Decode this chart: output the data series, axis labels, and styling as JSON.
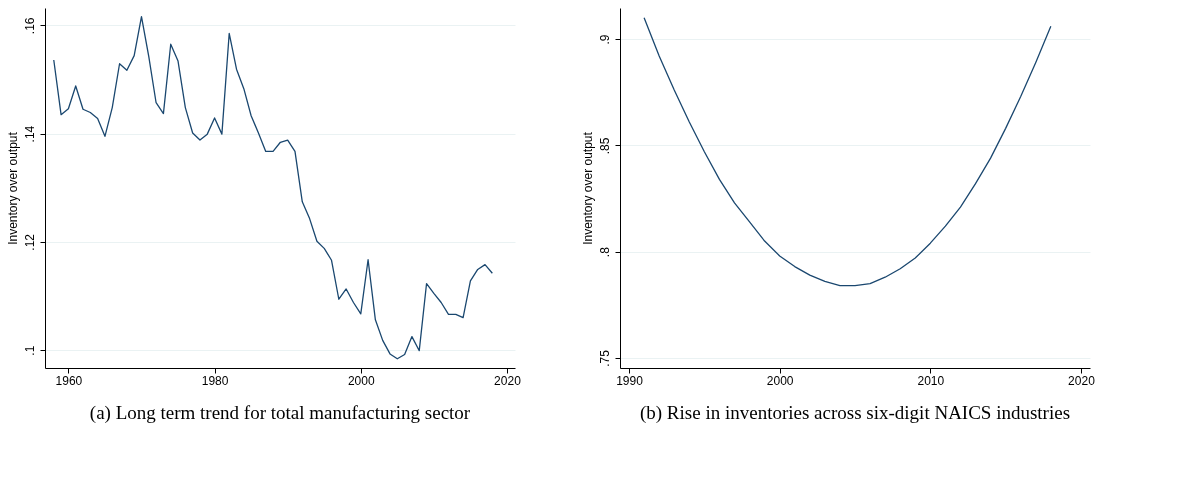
{
  "chart_data": [
    {
      "type": "line",
      "title": "(a) Long term trend for total manufacturing sector",
      "ylabel": "Inventory over output",
      "x": [
        1958,
        1959,
        1960,
        1961,
        1962,
        1963,
        1964,
        1965,
        1966,
        1967,
        1968,
        1969,
        1970,
        1971,
        1972,
        1973,
        1974,
        1975,
        1976,
        1977,
        1978,
        1979,
        1980,
        1981,
        1982,
        1983,
        1984,
        1985,
        1986,
        1987,
        1988,
        1989,
        1990,
        1991,
        1992,
        1993,
        1994,
        1995,
        1996,
        1997,
        1998,
        1999,
        2000,
        2001,
        2002,
        2003,
        2004,
        2005,
        2006,
        2007,
        2008,
        2009,
        2010,
        2011,
        2012,
        2013,
        2014,
        2015,
        2016,
        2017,
        2018
      ],
      "series": [
        {
          "color": "#1a476f",
          "values": [
            0.1536,
            0.1435,
            0.1446,
            0.1488,
            0.1445,
            0.1439,
            0.1428,
            0.1395,
            0.1448,
            0.1529,
            0.1517,
            0.1544,
            0.1616,
            0.1542,
            0.1457,
            0.1437,
            0.1565,
            0.1534,
            0.1448,
            0.1401,
            0.1388,
            0.1399,
            0.1429,
            0.1399,
            0.1585,
            0.1519,
            0.1483,
            0.1433,
            0.1401,
            0.1367,
            0.1367,
            0.1384,
            0.1388,
            0.1367,
            0.1274,
            0.1243,
            0.1201,
            0.1188,
            0.1166,
            0.1094,
            0.1113,
            0.1088,
            0.1067,
            0.1167,
            0.1056,
            0.1018,
            0.0993,
            0.0984,
            0.0992,
            0.1025,
            0.0999,
            0.1123,
            0.1105,
            0.1088,
            0.1066,
            0.1066,
            0.106,
            0.1128,
            0.1149,
            0.1158,
            0.1142
          ]
        }
      ],
      "xlim": [
        1956.8,
        2021.1
      ],
      "xticks": [
        1960,
        1980,
        2000,
        2020
      ],
      "ylim": [
        0.0967,
        0.1632
      ],
      "yticks": [
        {
          "value": 0.1,
          "label": ".1"
        },
        {
          "value": 0.12,
          "label": ".12"
        },
        {
          "value": 0.14,
          "label": ".14"
        },
        {
          "value": 0.16,
          "label": ".16"
        }
      ],
      "grid": "y",
      "legend": false,
      "marker": "none",
      "line_style": "solid"
    },
    {
      "type": "line",
      "title": "(b) Rise in inventories across six-digit NAICS industries",
      "ylabel": "Inventory over output",
      "x": [
        1991,
        1992,
        1993,
        1994,
        1995,
        1996,
        1997,
        1998,
        1999,
        2000,
        2001,
        2002,
        2003,
        2004,
        2005,
        2006,
        2007,
        2008,
        2009,
        2010,
        2011,
        2012,
        2013,
        2014,
        2015,
        2016,
        2017,
        2018
      ],
      "series": [
        {
          "color": "#1a476f",
          "values": [
            0.91,
            0.892,
            0.876,
            0.861,
            0.847,
            0.834,
            0.823,
            0.814,
            0.805,
            0.798,
            0.793,
            0.789,
            0.786,
            0.784,
            0.784,
            0.785,
            0.788,
            0.792,
            0.797,
            0.804,
            0.812,
            0.821,
            0.832,
            0.844,
            0.858,
            0.873,
            0.889,
            0.906
          ]
        }
      ],
      "xlim": [
        1989.4,
        2020.6
      ],
      "xticks": [
        1990,
        2000,
        2010,
        2020
      ],
      "ylim": [
        0.7453,
        0.9146
      ],
      "yticks": [
        {
          "value": 0.75,
          "label": ".75"
        },
        {
          "value": 0.8,
          "label": ".8"
        },
        {
          "value": 0.85,
          "label": ".85"
        },
        {
          "value": 0.9,
          "label": ".9"
        }
      ],
      "grid": "y",
      "legend": false,
      "marker": "none",
      "line_style": "solid"
    }
  ]
}
